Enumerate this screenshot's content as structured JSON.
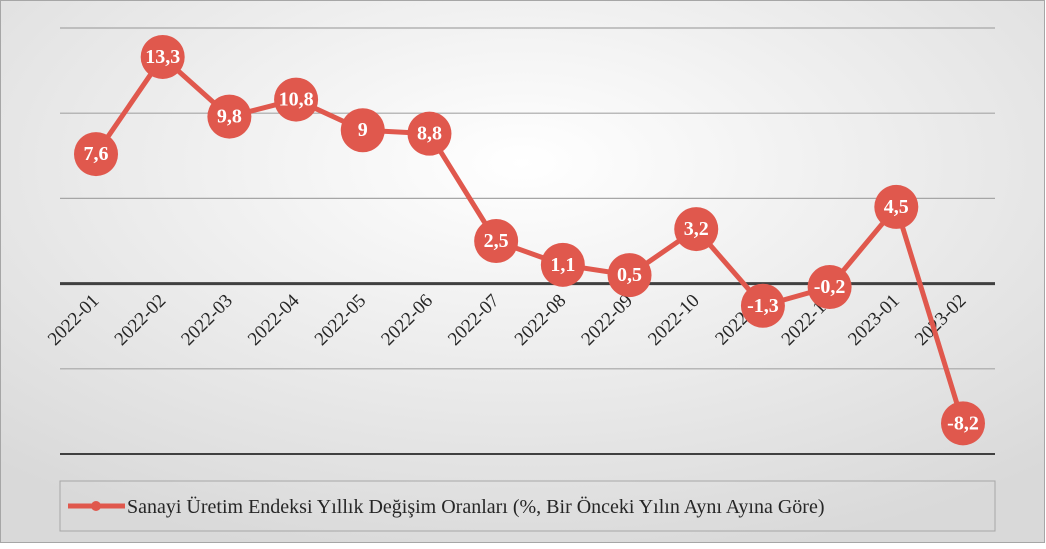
{
  "chart_data": {
    "type": "line",
    "categories": [
      "2022-01",
      "2022-02",
      "2022-03",
      "2022-04",
      "2022-05",
      "2022-06",
      "2022-07",
      "2022-08",
      "2022-09",
      "2022-10",
      "2022-11",
      "2022-12",
      "2023-01",
      "2023-02"
    ],
    "series": [
      {
        "name": "Sanayi Üretim Endeksi Yıllık Değişim Oranları (%, Bir Önceki Yılın Aynı Ayına Göre)",
        "color": "#e0584d",
        "values": [
          7.6,
          13.3,
          9.8,
          10.8,
          9,
          8.8,
          2.5,
          1.1,
          0.5,
          3.2,
          -1.3,
          -0.2,
          4.5,
          -8.2
        ],
        "value_labels": [
          "7,6",
          "13,3",
          "9,8",
          "10,8",
          "9",
          "8,8",
          "2,5",
          "1,1",
          "0,5",
          "3,2",
          "-1,3",
          "-0,2",
          "4,5",
          "-8,2"
        ]
      }
    ],
    "ylim": [
      -10,
      15
    ],
    "yticks": [
      -10,
      -5,
      0,
      5,
      10,
      15
    ],
    "grid": true,
    "legend": "bottom"
  }
}
